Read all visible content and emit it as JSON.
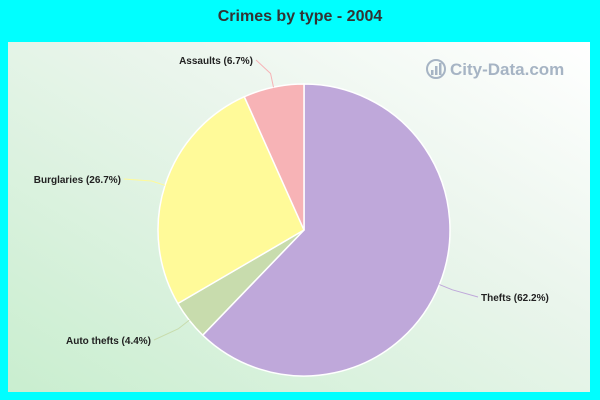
{
  "chart_data": {
    "type": "pie",
    "title": "Crimes by type - 2004",
    "slices": [
      {
        "label": "Thefts (62.2%)",
        "value": 62.2,
        "color": "#bfa8da"
      },
      {
        "label": "Auto thefts (4.4%)",
        "value": 4.4,
        "color": "#c8dcad"
      },
      {
        "label": "Burglaries (26.7%)",
        "value": 26.7,
        "color": "#fffa99"
      },
      {
        "label": "Assaults (6.7%)",
        "value": 6.7,
        "color": "#f7b3b6"
      }
    ]
  },
  "watermark": {
    "text": "City-Data.com",
    "icon": "bar-chart-icon"
  },
  "colors": {
    "background": "#00ffff"
  }
}
